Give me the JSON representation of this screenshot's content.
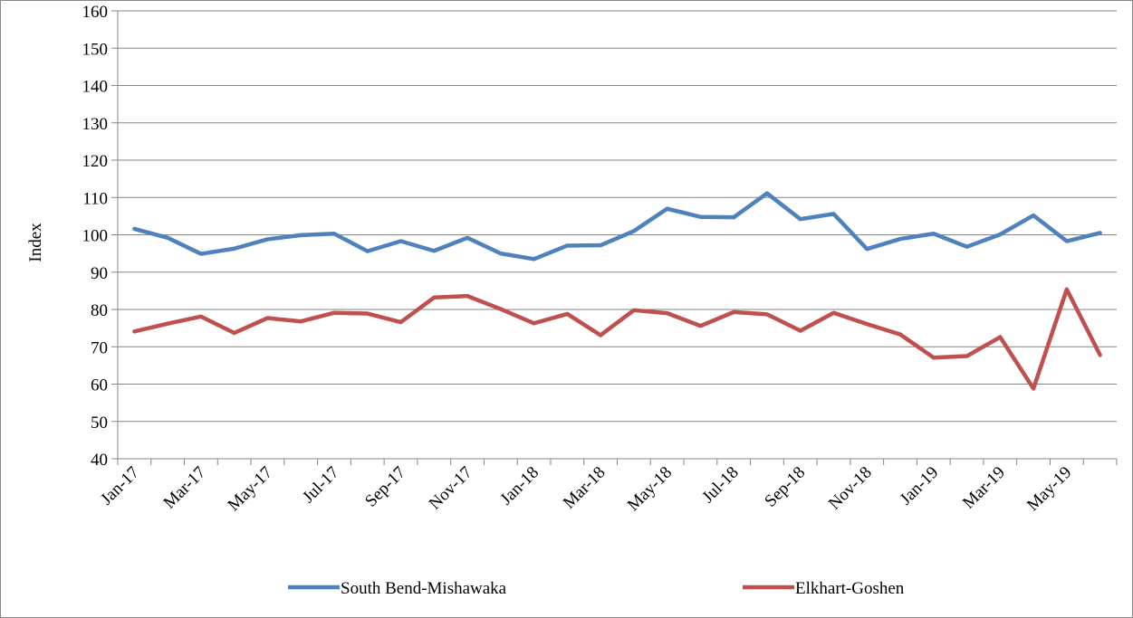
{
  "chart_data": {
    "type": "line",
    "title": "",
    "xlabel": "",
    "ylabel": "Index",
    "ylim": [
      40,
      160
    ],
    "yticks": [
      40,
      50,
      60,
      70,
      80,
      90,
      100,
      110,
      120,
      130,
      140,
      150,
      160
    ],
    "x": [
      "Jan-17",
      "Feb-17",
      "Mar-17",
      "Apr-17",
      "May-17",
      "Jun-17",
      "Jul-17",
      "Aug-17",
      "Sep-17",
      "Oct-17",
      "Nov-17",
      "Dec-17",
      "Jan-18",
      "Feb-18",
      "Mar-18",
      "Apr-18",
      "May-18",
      "Jun-18",
      "Jul-18",
      "Aug-18",
      "Sep-18",
      "Oct-18",
      "Nov-18",
      "Dec-18",
      "Jan-19",
      "Feb-19",
      "Mar-19",
      "Apr-19",
      "May-19",
      "Jun-19"
    ],
    "x_tick_labels": [
      "Jan-17",
      "Mar-17",
      "May-17",
      "Jul-17",
      "Sep-17",
      "Nov-17",
      "Jan-18",
      "Mar-18",
      "May-18",
      "Jul-18",
      "Sep-18",
      "Nov-18",
      "Jan-19",
      "Mar-19",
      "May-19"
    ],
    "grid": "horizontal",
    "legend_position": "bottom",
    "series": [
      {
        "name": "South Bend-Mishawaka",
        "color": "#4f81bd",
        "values": [
          101.6,
          99.2,
          94.9,
          96.3,
          98.8,
          99.9,
          100.3,
          95.6,
          98.3,
          95.7,
          99.2,
          95.0,
          93.5,
          97.1,
          97.2,
          101.0,
          107.0,
          104.8,
          104.7,
          111.1,
          104.2,
          105.6,
          96.2,
          98.9,
          100.3,
          96.8,
          100.1,
          105.2,
          98.3,
          100.5
        ]
      },
      {
        "name": "Elkhart-Goshen",
        "color": "#c0504d",
        "values": [
          74.1,
          76.2,
          78.1,
          73.7,
          77.7,
          76.8,
          79.1,
          78.9,
          76.6,
          83.2,
          83.6,
          80.1,
          76.3,
          78.8,
          73.1,
          79.8,
          79.0,
          75.6,
          79.3,
          78.7,
          74.3,
          79.1,
          76.1,
          73.3,
          67.1,
          67.5,
          72.6,
          58.8,
          85.4,
          67.8
        ]
      }
    ]
  }
}
